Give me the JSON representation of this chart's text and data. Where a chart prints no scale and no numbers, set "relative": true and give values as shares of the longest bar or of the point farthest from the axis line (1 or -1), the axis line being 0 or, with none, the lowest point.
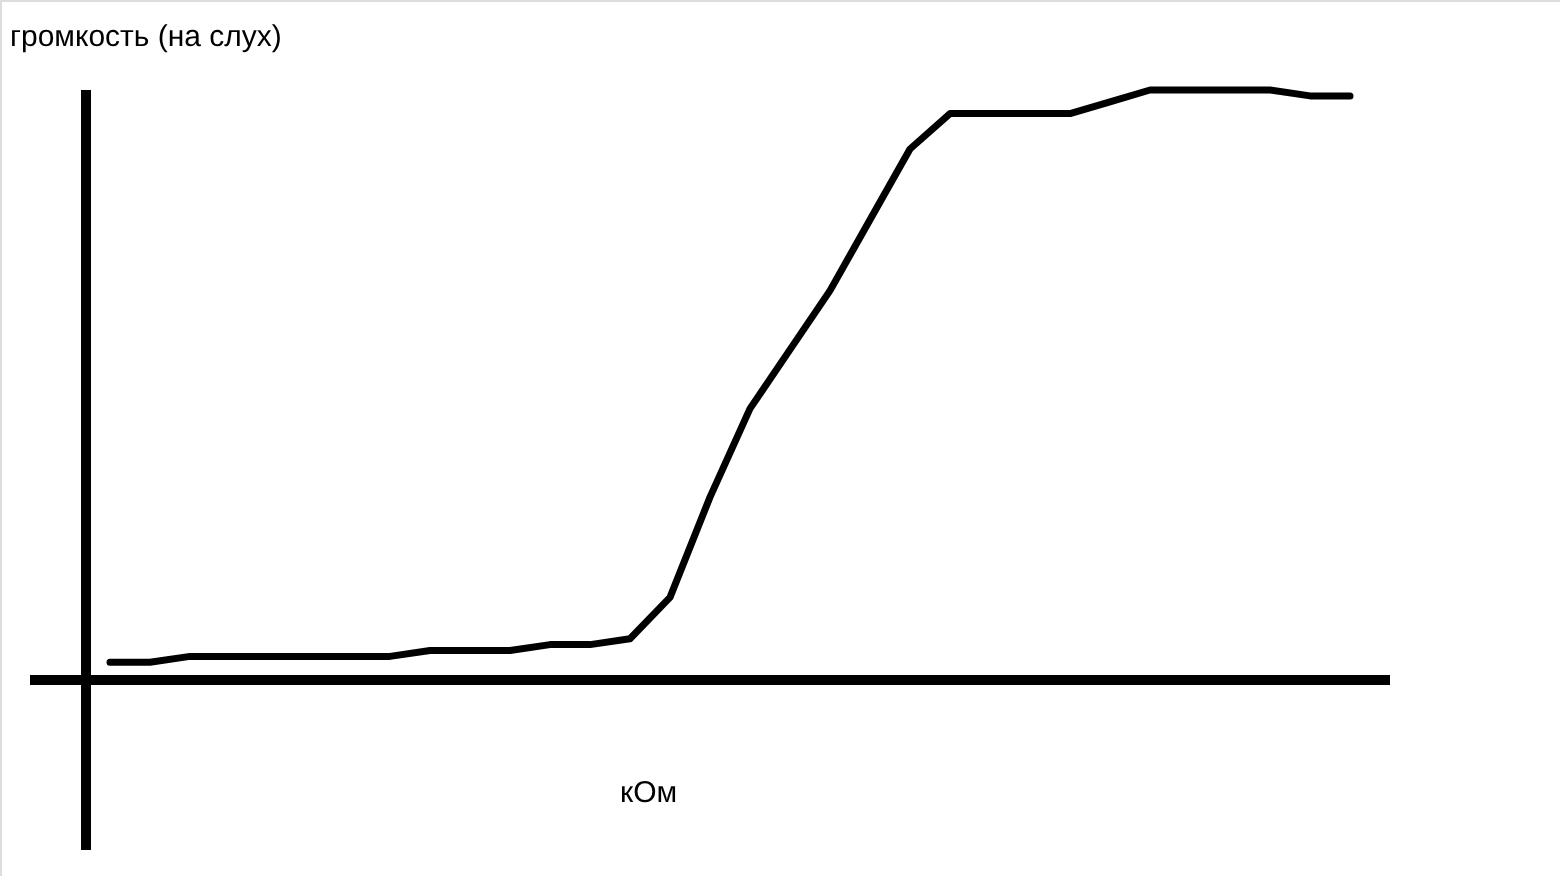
{
  "chart_data": {
    "type": "line",
    "relative": true,
    "ylabel": "громкость (на слух)",
    "xlabel": "кОм",
    "marker": "none",
    "line_style": "solid",
    "categories": [
      null,
      null,
      null,
      null,
      null,
      null,
      null,
      null,
      null,
      null,
      null,
      null,
      null,
      null,
      null,
      null,
      null,
      null,
      null,
      null,
      null,
      null,
      null,
      null,
      null,
      null,
      null,
      null,
      null,
      null,
      null,
      null
    ],
    "series": [
      {
        "color": "#000000",
        "values": [
          0.03,
          0.03,
          0.04,
          0.04,
          0.04,
          0.04,
          0.04,
          0.04,
          0.05,
          0.05,
          0.05,
          0.06,
          0.06,
          0.07,
          0.14,
          0.31,
          0.46,
          0.56,
          0.66,
          0.78,
          0.9,
          0.96,
          0.96,
          0.96,
          0.96,
          0.98,
          1.0,
          1.0,
          1.0,
          1.0,
          0.99,
          0.99
        ]
      }
    ]
  }
}
